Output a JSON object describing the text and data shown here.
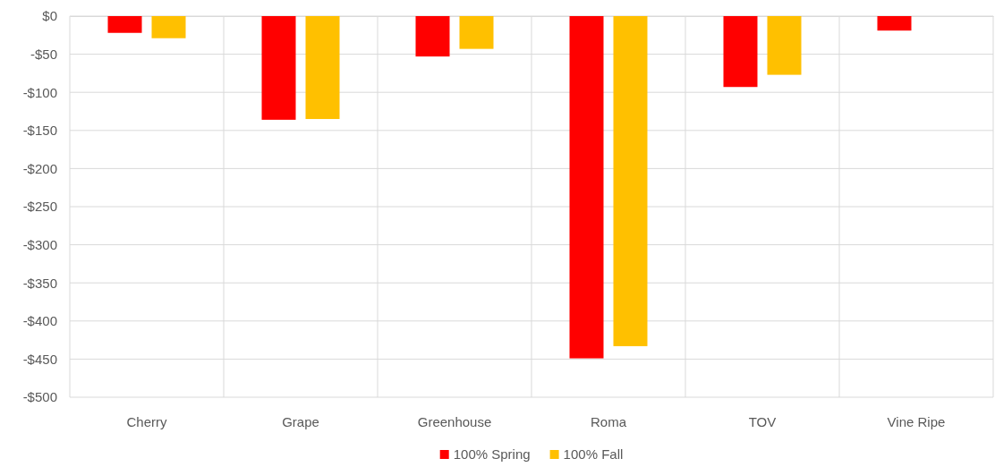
{
  "chart_data": {
    "type": "bar",
    "categories": [
      "Cherry",
      "Grape",
      "Greenhouse",
      "Roma",
      "TOV",
      "Vine Ripe"
    ],
    "series": [
      {
        "name": "100% Spring",
        "color": "#ff0000",
        "values": [
          -22,
          -136,
          -53,
          -449,
          -93,
          -19
        ]
      },
      {
        "name": "100% Fall",
        "color": "#ffc000",
        "values": [
          -29,
          -135,
          -43,
          -433,
          -77,
          null
        ]
      }
    ],
    "ylim": [
      -500,
      0
    ],
    "yticks": [
      {
        "value": -500,
        "label": "-$500"
      },
      {
        "value": -450,
        "label": "-$450"
      },
      {
        "value": -400,
        "label": "-$400"
      },
      {
        "value": -350,
        "label": "-$350"
      },
      {
        "value": -300,
        "label": "-$300"
      },
      {
        "value": -250,
        "label": "-$250"
      },
      {
        "value": -200,
        "label": "-$200"
      },
      {
        "value": -150,
        "label": "-$150"
      },
      {
        "value": -100,
        "label": "-$100"
      },
      {
        "value": -50,
        "label": "-$50"
      },
      {
        "value": 0,
        "label": "$0"
      }
    ],
    "grid": true,
    "legend": "bottom"
  }
}
